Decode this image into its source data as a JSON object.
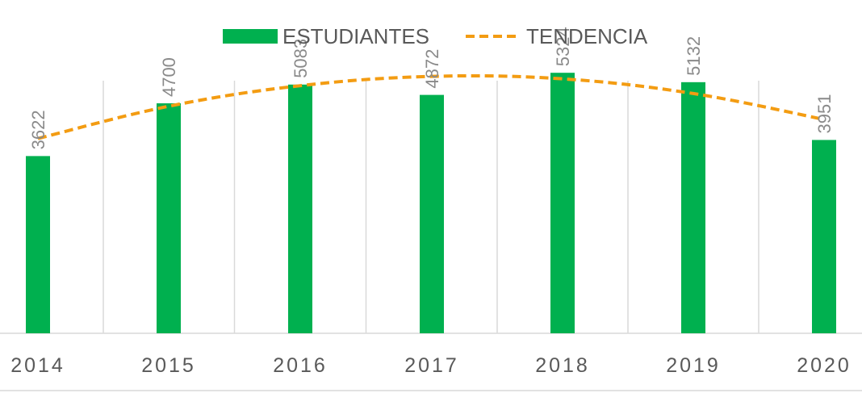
{
  "chart_data": {
    "type": "bar",
    "categories": [
      "2014",
      "2015",
      "2016",
      "2017",
      "2018",
      "2019",
      "2020"
    ],
    "series": [
      {
        "name": "ESTUDIANTES",
        "type": "bar",
        "color": "#00b04f",
        "values": [
          3622,
          4700,
          5083,
          4872,
          5324,
          5132,
          3951
        ],
        "labels": [
          "3622",
          "4700",
          "5083",
          "4872",
          "5324",
          "5132",
          "3951"
        ]
      },
      {
        "name": "TENDENCIA",
        "type": "line",
        "style": "dashed",
        "color": "#f39c12",
        "values": [
          3980,
          4640,
          5060,
          5250,
          5200,
          4900,
          4370
        ]
      }
    ],
    "ylim": [
      0,
      5624
    ],
    "grid": "vertical",
    "legend": "top-center",
    "title": "",
    "xlabel": "",
    "ylabel": ""
  }
}
